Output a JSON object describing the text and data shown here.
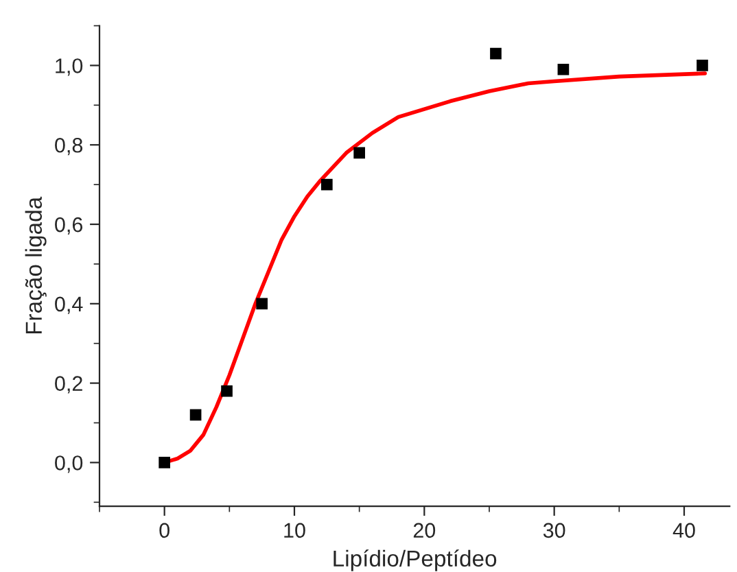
{
  "chart_data": {
    "type": "scatter",
    "xlabel": "Lipídio/Peptídeo",
    "ylabel": "Fração ligada",
    "xlim": [
      -5,
      43.5
    ],
    "ylim": [
      -0.11,
      1.1
    ],
    "xticks": [
      0,
      10,
      20,
      30,
      40
    ],
    "yticks": [
      {
        "value": 0,
        "label": "0,0"
      },
      {
        "value": 0.2,
        "label": "0,2"
      },
      {
        "value": 0.4,
        "label": "0,4"
      },
      {
        "value": 0.6,
        "label": "0,6"
      },
      {
        "value": 0.8,
        "label": "0,8"
      },
      {
        "value": 1.0,
        "label": "1,0"
      }
    ],
    "grid": false,
    "legend": false,
    "series": [
      {
        "color": "#000000",
        "marker": "square",
        "x": [
          0,
          2.4,
          4.8,
          7.5,
          12.5,
          15.0,
          25.5,
          30.7,
          41.4
        ],
        "values": [
          0.0,
          0.12,
          0.18,
          0.4,
          0.7,
          0.78,
          1.03,
          0.99,
          1.0
        ]
      },
      {
        "type": "line",
        "color": "#ff0000",
        "marker": "none",
        "line_style": "solid",
        "x": [
          0,
          1,
          2,
          3,
          4,
          5,
          6,
          7,
          8,
          9,
          10,
          11,
          12,
          14,
          16,
          18,
          20,
          22,
          25,
          28,
          30,
          35,
          41.6
        ],
        "values": [
          0.0,
          0.01,
          0.03,
          0.07,
          0.14,
          0.22,
          0.31,
          0.4,
          0.48,
          0.56,
          0.62,
          0.67,
          0.71,
          0.78,
          0.83,
          0.87,
          0.89,
          0.91,
          0.935,
          0.955,
          0.96,
          0.972,
          0.98
        ]
      }
    ]
  }
}
